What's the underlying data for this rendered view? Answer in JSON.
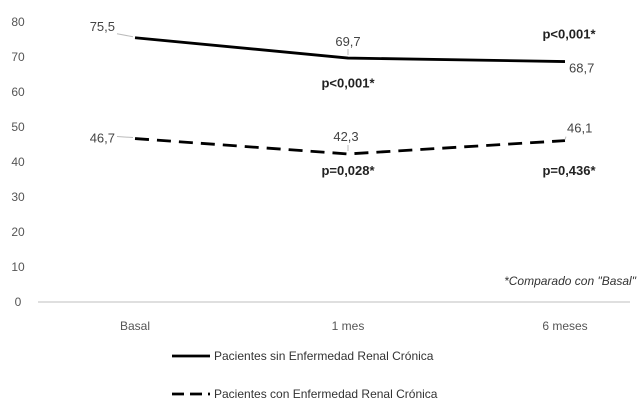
{
  "chart_data": {
    "type": "line",
    "categories": [
      "Basal",
      "1 mes",
      "6 meses"
    ],
    "ylim": [
      0,
      80
    ],
    "yticks": [
      0,
      10,
      20,
      30,
      40,
      50,
      60,
      70,
      80
    ],
    "grid": false,
    "legend_position": "bottom",
    "series": [
      {
        "name": "Pacientes sin Enfermedad Renal Crónica",
        "style": "solid",
        "color": "#000000",
        "values": [
          75.5,
          69.7,
          68.7
        ],
        "labels": [
          "75,5",
          "69,7",
          "68,7"
        ]
      },
      {
        "name": "Pacientes con Enfermedad Renal Crónica",
        "style": "dashed",
        "color": "#000000",
        "values": [
          46.7,
          42.3,
          46.1
        ],
        "labels": [
          "46,7",
          "42,3",
          "46,1"
        ]
      }
    ],
    "annotations": [
      {
        "text": "p<0,001*",
        "category": "1 mes",
        "y": 62.5
      },
      {
        "text": "p<0,001*",
        "category": "6 meses",
        "y": 76.5
      },
      {
        "text": "p=0,028*",
        "category": "1 mes",
        "y": 37.5
      },
      {
        "text": "p=0,436*",
        "category": "6 meses",
        "y": 37.5
      }
    ],
    "note": "*Comparado con \"Basal\""
  }
}
